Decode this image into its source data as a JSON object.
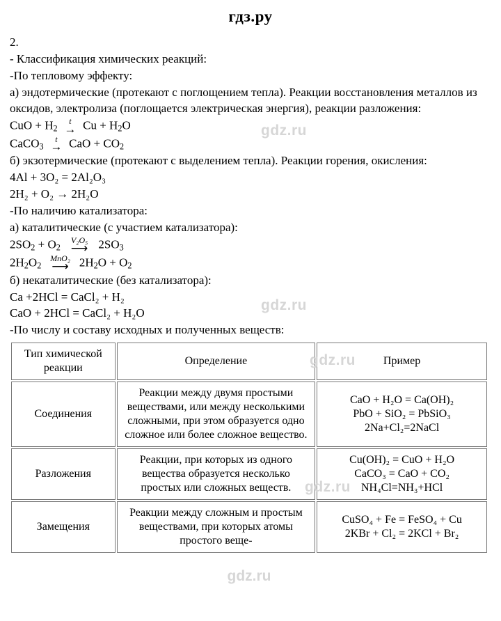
{
  "header": {
    "title": "гдз.ру"
  },
  "watermarks": {
    "w1": "gdz.ru",
    "w2": "gdz.ru",
    "w3": "gdz.ru",
    "w4": "gdz.ru",
    "footer": "gdz.ru"
  },
  "body": {
    "l1": "2.",
    "l2": "- Классификация химических реакций:",
    "l3": "-По тепловому эффекту:",
    "l4": "а) эндотермические (протекают с поглощением тепла). Реакции восстановления металлов из оксидов, электролиза (поглощается электрическая энергия), реакции разложения:",
    "eq1_left": "CuO + H",
    "eq1_leftsub": "2",
    "eq1_ovtop": "t",
    "eq1_right": "Cu + H",
    "eq1_rightsub": "2",
    "eq1_rightO": "O",
    "eq2_left": "CaCO",
    "eq2_leftsub": "3",
    "eq2_ovtop": "t",
    "eq2_right1": "CaO + CO",
    "eq2_rightsub": "2",
    "l5": "б) экзотермические (протекают с выделением тепла). Реакции горения, окисления:",
    "eq3": "4Al + 3O₂ = 2Al₂O₃",
    "eq4": "2H₂ + O₂ → 2H₂O",
    "l6": "-По наличию катализатора:",
    "l7": "а) каталитические (с участием катализатора):",
    "eq5_left": "2SO",
    "eq5_leftsub": "2",
    "eq5_mid": " + O",
    "eq5_midsub": "2",
    "eq5_ovtop": "V₂O₅",
    "eq5_right": " 2SO",
    "eq5_rightsub": "3",
    "eq6_left": "2H",
    "eq6_leftsub": "2",
    "eq6_left2": "O",
    "eq6_leftsub2": "2",
    "eq6_ovtop": "MnO₂",
    "eq6_right": " 2H",
    "eq6_rightsub": "2",
    "eq6_right2": "O + O",
    "eq6_rightsub2": "2",
    "l8": "б) некаталитические (без катализатора):",
    "eq7": "Ca +2HCl = CaCl₂ + H₂",
    "eq8": "CaO + 2HCl = CaCl₂ + H₂O",
    "l9": "-По числу и составу исходных и полученных веществ:"
  },
  "table": {
    "h1": "Тип химической реакции",
    "h2": "Определение",
    "h3": "Пример",
    "rows": [
      {
        "type": "Соединения",
        "def": "Реакции между двумя простыми веществами, или между несколькими сложными, при этом образуется одно сложное или более сложное вещество.",
        "ex": "CaO + H₂O = Ca(OH)₂\nPbO + SiO₂ = PbSiO₃\n2Na+Cl₂=2NaCl"
      },
      {
        "type": "Разложения",
        "def": "Реакции, при которых из одного вещества образуется несколько простых или сложных веществ.",
        "ex": "Cu(OH)₂ = CuO + H₂O\nCaCO₃ = CaO + CO₂\nNH₄Cl=NH₃+HCl"
      },
      {
        "type": "Замещения",
        "def": "Реакции между сложным и простым веществами, при которых атомы простого веще-",
        "ex": "CuSO₄ + Fe = FeSO₄ + Cu\n2KBr + Cl₂ = 2KCl + Br₂"
      }
    ]
  },
  "style": {
    "watermark_color": "#d6d6d6",
    "border_color": "#777777"
  }
}
